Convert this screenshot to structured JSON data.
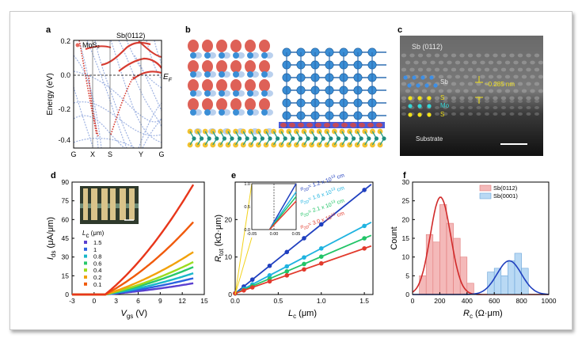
{
  "figure": {
    "panel_labels": [
      "a",
      "b",
      "c",
      "d",
      "e",
      "f"
    ]
  },
  "panel_a": {
    "legend_mos2": "MoS₂",
    "legend_sb": "Sb(0112)",
    "ylabel": "Energy (eV)",
    "ef_label": "E",
    "ef_sub": "F",
    "yticks": [
      "0.2",
      "0.0",
      "-0.2",
      "-0.4"
    ],
    "xticks": [
      "G",
      "X",
      "S",
      "Y",
      "G"
    ],
    "colors": {
      "mos2": "#d63c31",
      "sb": "#9fb3e2"
    }
  },
  "panel_c": {
    "title": "Sb (0112)",
    "sb": "Sb",
    "s1": "S",
    "mo": "Mo",
    "s2": "S",
    "spacing": "~0.285 nm",
    "substrate": "Substrate"
  },
  "chart_data": [
    {
      "type": "line",
      "panel": "d",
      "xlabel": "V",
      "xlabel_sub": "gs",
      "xlabel_unit": " (V)",
      "ylabel": "I",
      "ylabel_sub": "ds",
      "ylabel_unit": " (μA/μm)",
      "xlim": [
        -3,
        15
      ],
      "ylim": [
        0,
        90
      ],
      "xticks": [
        -3,
        0,
        3,
        6,
        9,
        12,
        15
      ],
      "yticks": [
        0,
        15,
        30,
        45,
        60,
        75,
        90
      ],
      "legend_title": "L",
      "legend_title_sub": "c",
      "legend_title_unit": " (μm)",
      "legend_position": "inside-left",
      "series": [
        {
          "name": "1.5",
          "color": "#5a3fd0",
          "marker": "square",
          "end": 9
        },
        {
          "name": "1",
          "color": "#2b62e0",
          "marker": "circle",
          "end": 13
        },
        {
          "name": "0.8",
          "color": "#18b7c9",
          "marker": "triangle",
          "end": 17
        },
        {
          "name": "0.6",
          "color": "#28c86b",
          "marker": "triangle-down",
          "end": 22
        },
        {
          "name": "0.4",
          "color": "#9bdc1e",
          "marker": "diamond",
          "end": 26
        },
        {
          "name": "0.2",
          "color": "#f2a10a",
          "marker": "triangle-left",
          "end": 34
        },
        {
          "name": "0.1",
          "color": "#f05a0c",
          "marker": "triangle-right",
          "end": 58
        },
        {
          "name": "",
          "color": "#e8361a",
          "marker": "none",
          "end": 88
        }
      ],
      "vth": 1.5,
      "vmax": 13.5
    },
    {
      "type": "scatter",
      "panel": "e",
      "xlabel": "L",
      "xlabel_sub": "c",
      "xlabel_unit": " (μm)",
      "ylabel": "R",
      "ylabel_sub": "tot",
      "ylabel_unit": " (kΩ·μm)",
      "xlim": [
        0,
        1.6
      ],
      "ylim": [
        0,
        30
      ],
      "xticks": [
        0,
        0.5,
        1.0,
        1.5
      ],
      "xtick_labels": [
        "0.0",
        "0.5",
        "1.0",
        "1.5"
      ],
      "yticks": [
        0,
        10,
        20
      ],
      "x": [
        0,
        0.1,
        0.2,
        0.4,
        0.6,
        0.8,
        1.0,
        1.5
      ],
      "series": [
        {
          "name": "n_2D = 1.2 x 10^13 cm^-2",
          "label_text": "= 1.2 x 10",
          "exp": "13",
          "unit_tail": " cm",
          "color": "#1f3fbf",
          "slope": 18.4,
          "intercept": 0.3
        },
        {
          "name": "n_2D = 1.6 x 10^13 cm^-2",
          "label_text": "= 1.6 x 10",
          "exp": "13",
          "unit_tail": " cm",
          "color": "#1fb3e0",
          "slope": 12.0,
          "intercept": 0.3
        },
        {
          "name": "n_2D = 2.1 x 10^13 cm^-2",
          "label_text": "= 2.1 x 10",
          "exp": "13",
          "unit_tail": " cm",
          "color": "#21c467",
          "slope": 9.8,
          "intercept": 0.3
        },
        {
          "name": "n_2D = 3.0 x 10^13 cm^-2",
          "label_text": "= 3.0 x 10",
          "exp": "13",
          "unit_tail": " cm",
          "color": "#e23a2c",
          "slope": 8.0,
          "intercept": 0.3
        }
      ],
      "inset": {
        "xlim": [
          -0.05,
          0.05
        ],
        "ylim": [
          0.0,
          1.0
        ],
        "xtick_labels": [
          "-0.05",
          "0.00",
          "0.05"
        ],
        "ytick_labels": [
          "0.0",
          "0.5",
          "1.0"
        ]
      }
    },
    {
      "type": "bar",
      "panel": "f",
      "xlabel": "R",
      "xlabel_sub": "c",
      "xlabel_unit": " (Ω·μm)",
      "ylabel": "Count",
      "xlim": [
        0,
        1000
      ],
      "ylim": [
        0,
        30
      ],
      "xticks": [
        0,
        200,
        400,
        600,
        800,
        1000
      ],
      "yticks": [
        0,
        5,
        10,
        15,
        20,
        25,
        30
      ],
      "bin_width": 50,
      "series": [
        {
          "name": "Sb(0112)",
          "fill": "#f4b9b9",
          "edge": "#e27b7b",
          "curve": "#d12a2a",
          "bins_start": 50,
          "counts": [
            5,
            16,
            14,
            24,
            19,
            15,
            10,
            3
          ],
          "mu": 205,
          "sigma": 75,
          "peak": 26
        },
        {
          "name": "Sb(0001)",
          "fill": "#b9d9f4",
          "edge": "#6aa4d8",
          "curve": "#1f3fbf",
          "bins_start": 550,
          "counts": [
            6,
            7,
            5,
            9,
            11,
            7
          ],
          "mu": 710,
          "sigma": 90,
          "peak": 9
        }
      ],
      "legend_position": "top-right"
    }
  ]
}
